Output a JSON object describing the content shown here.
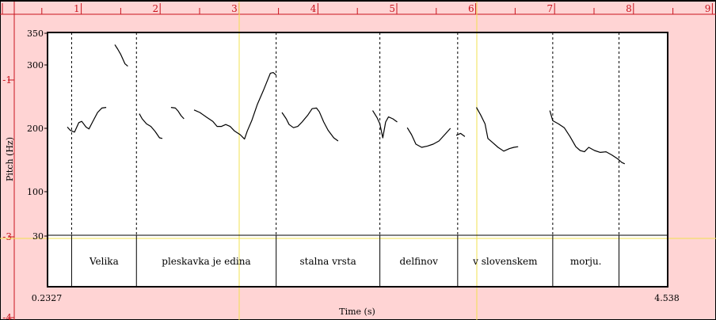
{
  "chart_data": {
    "type": "line",
    "title": "",
    "xlabel": "Time (s)",
    "ylabel": "Pitch (Hz)",
    "xlim": [
      0.2327,
      4.538
    ],
    "x_ticks_shown": [
      "0.2327",
      "4.538"
    ],
    "ylim": [
      30,
      350
    ],
    "y_ticks": [
      "350",
      "300",
      "200",
      "100",
      "30"
    ],
    "top_ruler": [
      "1",
      "2",
      "3",
      "4",
      "5",
      "6",
      "7",
      "8",
      "9"
    ],
    "left_ruler": [
      "-1",
      "-3",
      "-4"
    ],
    "boundaries": [
      0.4,
      0.85,
      1.82,
      2.54,
      3.08,
      3.74,
      4.2
    ],
    "segments": [
      {
        "text": "Velika",
        "start": 0.4,
        "end": 0.85
      },
      {
        "text": "pleskavka je edina",
        "start": 0.85,
        "end": 1.82
      },
      {
        "text": "stalna vrsta",
        "start": 1.82,
        "end": 2.54
      },
      {
        "text": "delfinov",
        "start": 2.54,
        "end": 3.08
      },
      {
        "text": "v slovenskem",
        "start": 3.08,
        "end": 3.74
      },
      {
        "text": "morju.",
        "start": 3.74,
        "end": 4.2
      }
    ],
    "series": [
      {
        "values": [
          [
            0.37,
            202
          ],
          [
            0.39,
            197
          ],
          [
            0.42,
            194
          ],
          [
            0.45,
            209
          ],
          [
            0.47,
            211
          ],
          [
            0.5,
            202
          ],
          [
            0.52,
            199
          ],
          [
            0.55,
            212
          ],
          [
            0.58,
            225
          ],
          [
            0.61,
            232
          ],
          [
            0.64,
            233
          ]
        ]
      },
      {
        "values": [
          [
            0.7,
            332
          ],
          [
            0.72,
            325
          ],
          [
            0.74,
            317
          ],
          [
            0.77,
            302
          ],
          [
            0.79,
            298
          ]
        ]
      },
      {
        "values": [
          [
            0.87,
            223
          ],
          [
            0.89,
            215
          ],
          [
            0.92,
            207
          ],
          [
            0.95,
            203
          ],
          [
            0.98,
            195
          ],
          [
            1.01,
            185
          ],
          [
            1.03,
            184
          ]
        ]
      },
      {
        "values": [
          [
            1.09,
            233
          ],
          [
            1.12,
            232
          ],
          [
            1.14,
            227
          ],
          [
            1.16,
            220
          ],
          [
            1.18,
            215
          ]
        ]
      },
      {
        "values": [
          [
            1.25,
            229
          ],
          [
            1.29,
            225
          ],
          [
            1.34,
            217
          ],
          [
            1.38,
            211
          ],
          [
            1.41,
            203
          ],
          [
            1.44,
            203
          ],
          [
            1.47,
            206
          ],
          [
            1.5,
            203
          ],
          [
            1.53,
            196
          ],
          [
            1.57,
            190
          ],
          [
            1.6,
            183
          ],
          [
            1.62,
            196
          ],
          [
            1.65,
            212
          ],
          [
            1.69,
            238
          ],
          [
            1.73,
            259
          ],
          [
            1.76,
            276
          ],
          [
            1.78,
            287
          ],
          [
            1.8,
            288
          ],
          [
            1.82,
            284
          ]
        ]
      },
      {
        "values": [
          [
            1.86,
            225
          ],
          [
            1.89,
            215
          ],
          [
            1.91,
            206
          ],
          [
            1.94,
            201
          ],
          [
            1.97,
            203
          ],
          [
            2.0,
            210
          ],
          [
            2.04,
            221
          ],
          [
            2.07,
            231
          ],
          [
            2.1,
            232
          ],
          [
            2.12,
            226
          ],
          [
            2.15,
            210
          ],
          [
            2.18,
            197
          ],
          [
            2.22,
            185
          ],
          [
            2.25,
            180
          ]
        ]
      },
      {
        "values": [
          [
            2.49,
            228
          ],
          [
            2.52,
            217
          ],
          [
            2.54,
            207
          ],
          [
            2.56,
            185
          ],
          [
            2.58,
            210
          ],
          [
            2.6,
            218
          ],
          [
            2.63,
            215
          ],
          [
            2.66,
            210
          ]
        ]
      },
      {
        "values": [
          [
            2.73,
            201
          ],
          [
            2.76,
            190
          ],
          [
            2.79,
            175
          ],
          [
            2.83,
            170
          ],
          [
            2.87,
            172
          ],
          [
            2.91,
            175
          ],
          [
            2.95,
            180
          ],
          [
            2.99,
            190
          ],
          [
            3.03,
            200
          ]
        ]
      },
      {
        "values": [
          [
            3.07,
            189
          ],
          [
            3.1,
            192
          ],
          [
            3.13,
            187
          ]
        ]
      },
      {
        "values": [
          [
            3.21,
            233
          ],
          [
            3.24,
            221
          ],
          [
            3.27,
            207
          ],
          [
            3.29,
            184
          ],
          [
            3.32,
            178
          ],
          [
            3.36,
            170
          ],
          [
            3.4,
            164
          ],
          [
            3.44,
            168
          ],
          [
            3.47,
            170
          ],
          [
            3.5,
            171
          ]
        ]
      },
      {
        "values": [
          [
            3.72,
            228
          ],
          [
            3.74,
            212
          ],
          [
            3.78,
            207
          ],
          [
            3.82,
            201
          ],
          [
            3.86,
            187
          ],
          [
            3.9,
            171
          ],
          [
            3.93,
            165
          ],
          [
            3.96,
            163
          ],
          [
            3.99,
            170
          ],
          [
            4.03,
            165
          ],
          [
            4.07,
            162
          ],
          [
            4.11,
            163
          ],
          [
            4.15,
            158
          ],
          [
            4.19,
            152
          ],
          [
            4.22,
            146
          ],
          [
            4.24,
            144
          ]
        ]
      }
    ],
    "grid": false,
    "legend": "none",
    "colors": {
      "background": "#ffd4d4",
      "plot": "#ffffff",
      "ruler": "#c8141e",
      "cursor": "#f0e050",
      "contour": "#000000"
    }
  }
}
